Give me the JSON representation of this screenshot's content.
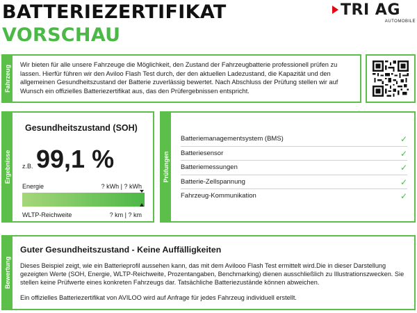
{
  "header": {
    "title_line1": "BATTERIEZERTIFIKAT",
    "title_line2": "VORSCHAU"
  },
  "logo": {
    "name": "TRI AG",
    "subtitle": "AUTOMOBILE",
    "accent_color": "#e30613"
  },
  "colors": {
    "brand_green": "#4cb847",
    "frame_green": "#5cbf4a"
  },
  "fahrzeug": {
    "side_label": "Fahrzeug",
    "text": "Wir bieten für alle unsere Fahrzeuge die Möglichkeit, den Zustand der Fahrzeugbatterie professionell prüfen zu lassen. Hierfür führen wir den Aviloo Flash Test durch, der den aktuellen Ladezustand, die Kapazität und den allgemeinen Gesundheitszustand der Batterie zuverlässig bewertet. Nach Abschluss der Prüfung stellen wir auf Wunsch ein offizielles Batteriezertifikat aus, das den Prüfergebnissen entspricht.",
    "qr_icon": "qr-code-icon"
  },
  "ergebnisse": {
    "side_label": "Ergebnisse",
    "title": "Gesundheitszustand (SOH)",
    "prefix": "z.B.",
    "value": "99,1 %",
    "energie_label": "Energie",
    "energie_value": "? kWh | ? kWh",
    "bar_fill_percent": 99.1,
    "wltp_label": "WLTP-Reichweite",
    "wltp_value": "? km | ? km"
  },
  "pruefungen": {
    "side_label": "Prüfungen",
    "check_icon": "checkmark-icon",
    "items": [
      {
        "label": "Batteriemanagementsystem (BMS)",
        "check": "✓"
      },
      {
        "label": "Batteriesensor",
        "check": "✓"
      },
      {
        "label": "Batteriemessungen",
        "check": "✓"
      },
      {
        "label": "Batterie-Zellspannung",
        "check": "✓"
      },
      {
        "label": "Fahrzeug-Kommunikation",
        "check": "✓"
      }
    ]
  },
  "bewertung": {
    "side_label": "Bewertung",
    "title": "Guter Gesundheitszustand - Keine Auffälligkeiten",
    "text": "Dieses Beispiel zeigt, wie ein Batterieprofil aussehen kann, das mit dem Avilooo Flash Test ermittelt wird.Die in dieser Darstellung gezeigten Werte (SOH, Energie, WLTP-Reichweite, Prozentangaben, Benchmarking) dienen ausschließlich zu Illustrationszwecken. Sie stellen keine Prüfwerte eines konkreten Fahrzeugs dar. Tatsächliche Batteriezustände können abweichen.",
    "text2": "Ein offizielles Batteriezertifikat von AVILOO wird auf Anfrage für jedes Fahrzeug individuell erstellt."
  }
}
